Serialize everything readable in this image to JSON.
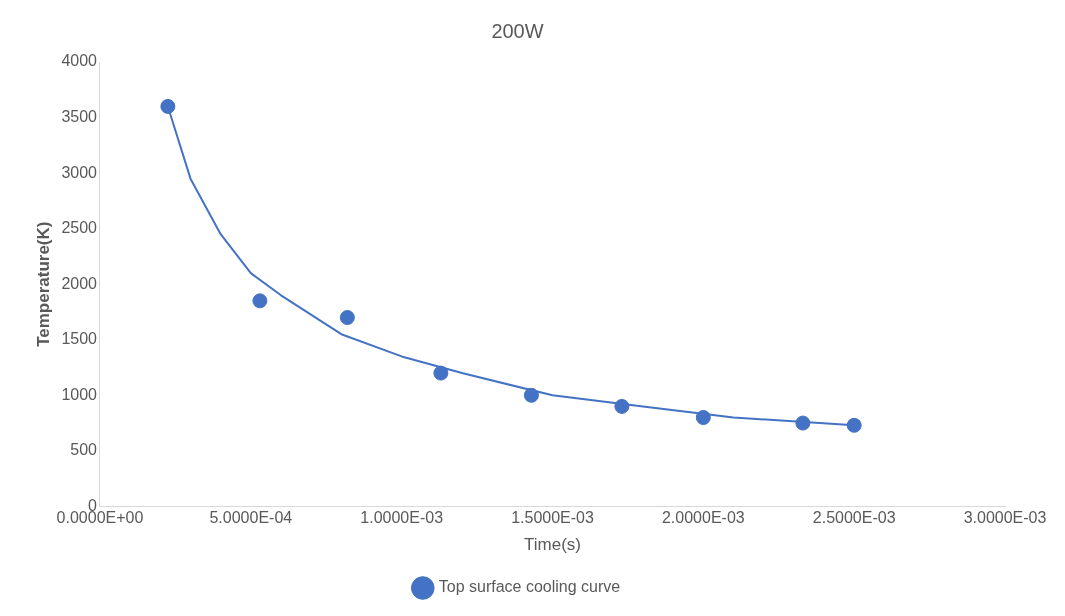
{
  "chart_data": {
    "type": "scatter",
    "title": "200W",
    "xlabel": "Time(s)",
    "ylabel": "Temperature(K)",
    "series": [
      {
        "name": "Top surface cooling curve",
        "color": "#4472c4",
        "marker": "circle",
        "x": [
          0.000225,
          0.00053,
          0.00082,
          0.00113,
          0.00143,
          0.00173,
          0.002,
          0.00233,
          0.0025
        ],
        "values": [
          3600,
          1850,
          1700,
          1200,
          1000,
          900,
          800,
          750,
          730
        ]
      },
      {
        "type": "line",
        "color": "#4472c4",
        "marker": "none",
        "x": [
          0.000225,
          0.0003,
          0.0004,
          0.0005,
          0.0006,
          0.0008,
          0.001,
          0.0012,
          0.0015,
          0.0018,
          0.0021,
          0.0025
        ],
        "values": [
          3600,
          2950,
          2450,
          2100,
          1900,
          1550,
          1350,
          1200,
          1000,
          900,
          800,
          730
        ]
      }
    ],
    "xlim": [
      0,
      0.003
    ],
    "xticks": [
      {
        "value": 0,
        "label": "0.0000E+00"
      },
      {
        "value": 0.0005,
        "label": "5.0000E-04"
      },
      {
        "value": 0.001,
        "label": "1.0000E-03"
      },
      {
        "value": 0.0015,
        "label": "1.5000E-03"
      },
      {
        "value": 0.002,
        "label": "2.0000E-03"
      },
      {
        "value": 0.0025,
        "label": "2.5000E-03"
      },
      {
        "value": 0.003,
        "label": "3.0000E-03"
      }
    ],
    "ylim": [
      0,
      4000
    ],
    "yticks": [
      0,
      500,
      1000,
      1500,
      2000,
      2500,
      3000,
      3500,
      4000
    ],
    "legend": "bottom"
  }
}
